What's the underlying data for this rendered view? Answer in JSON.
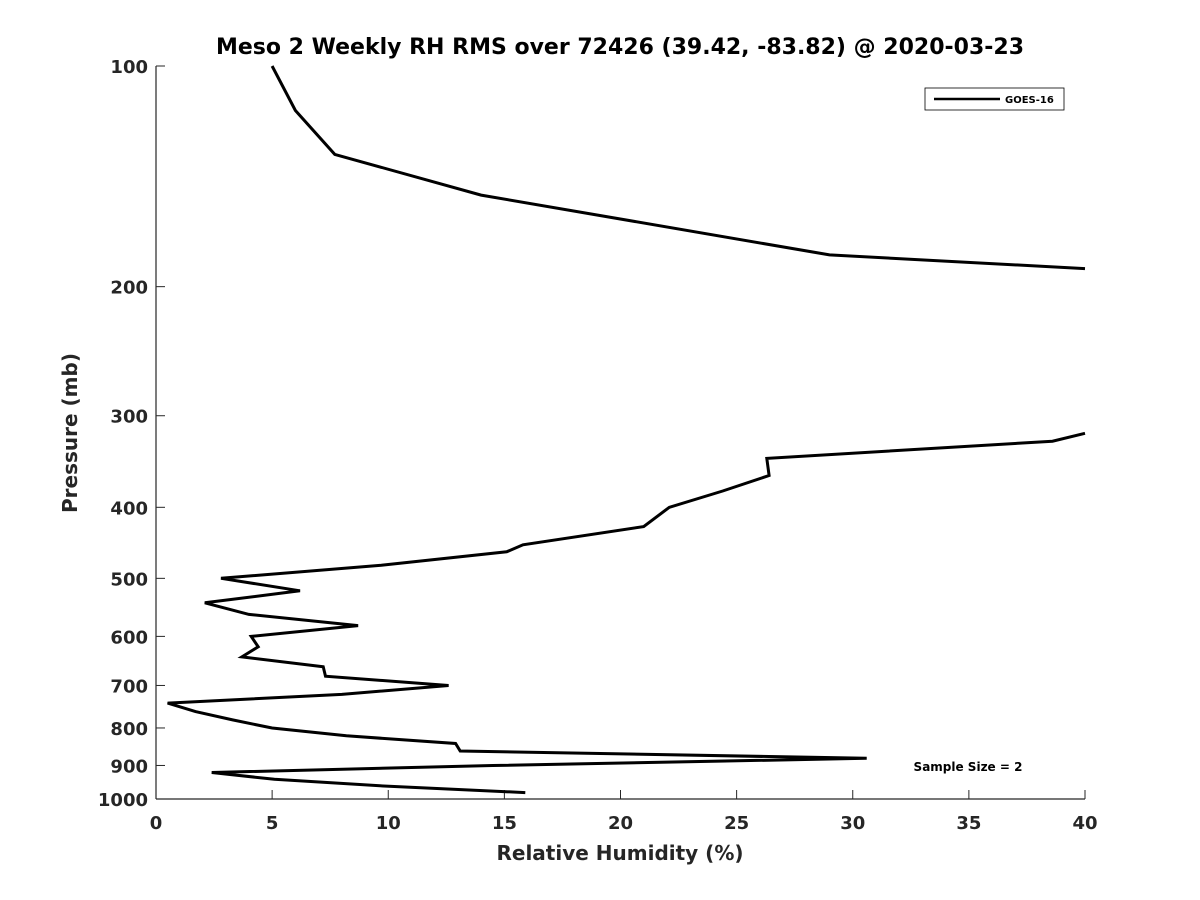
{
  "chart_data": {
    "type": "line",
    "title": "Meso 2 Weekly RH RMS over 72426 (39.42, -83.82) @ 2020-03-23",
    "xlabel": "Relative Humidity (%)",
    "ylabel": "Pressure (mb)",
    "xlim": [
      0,
      40
    ],
    "ylim": [
      100,
      1000
    ],
    "y_scale": "log",
    "y_reversed": true,
    "xticks": [
      0,
      5,
      10,
      15,
      20,
      25,
      30,
      35,
      40
    ],
    "yticks": [
      100,
      200,
      300,
      400,
      500,
      600,
      700,
      800,
      900,
      1000
    ],
    "grid": false,
    "legend_position": "top-right",
    "annotation": "Sample Size = 2",
    "series": [
      {
        "name": "GOES-16",
        "color": "#000000",
        "segments": [
          [
            [
              5.0,
              100
            ],
            [
              6.0,
              115
            ],
            [
              7.7,
              132
            ],
            [
              14.0,
              150
            ],
            [
              29.0,
              181
            ],
            [
              40.0,
              189
            ]
          ],
          [
            [
              40.0,
              317
            ],
            [
              38.6,
              325
            ],
            [
              26.3,
              343
            ],
            [
              26.4,
              362
            ],
            [
              24.4,
              380
            ],
            [
              22.1,
              400
            ],
            [
              21.0,
              425
            ],
            [
              15.8,
              450
            ],
            [
              15.1,
              460
            ],
            [
              9.7,
              480
            ],
            [
              2.8,
              500
            ],
            [
              6.2,
              520
            ],
            [
              2.1,
              540
            ],
            [
              4.0,
              560
            ],
            [
              8.7,
              580
            ],
            [
              4.1,
              600
            ],
            [
              4.4,
              620
            ],
            [
              3.7,
              640
            ],
            [
              7.2,
              660
            ],
            [
              7.3,
              680
            ],
            [
              12.6,
              700
            ],
            [
              8.0,
              720
            ],
            [
              0.5,
              740
            ],
            [
              1.7,
              760
            ],
            [
              3.3,
              780
            ],
            [
              5.0,
              800
            ],
            [
              8.2,
              820
            ],
            [
              12.9,
              840
            ],
            [
              13.1,
              860
            ],
            [
              30.6,
              880
            ],
            [
              14.5,
              900
            ],
            [
              2.4,
              920
            ],
            [
              5.1,
              940
            ],
            [
              9.8,
              960
            ],
            [
              15.9,
              980
            ]
          ]
        ]
      }
    ]
  }
}
